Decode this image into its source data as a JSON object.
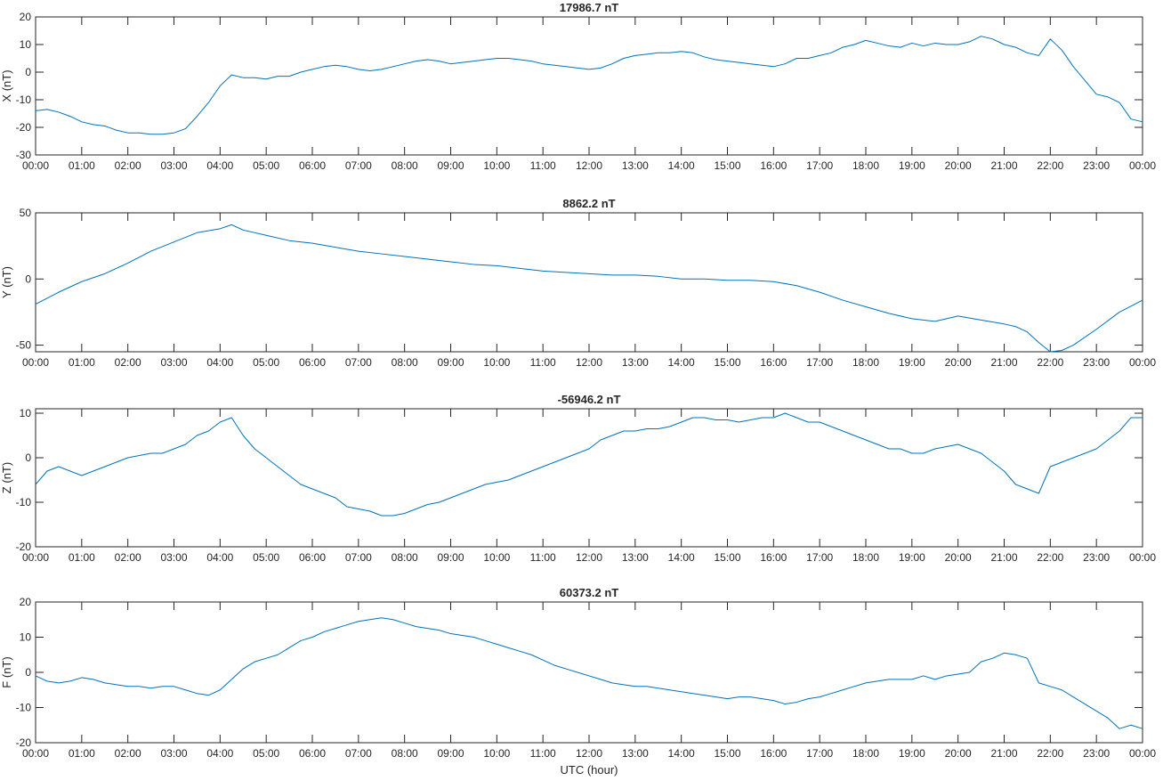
{
  "chart_data": [
    {
      "type": "line",
      "title": "17986.7 nT",
      "ylabel": "X (nT)",
      "xlabel": "",
      "xlim": [
        0,
        24
      ],
      "ylim": [
        -30,
        20
      ],
      "yticks": [
        -30,
        -20,
        -10,
        0,
        10,
        20
      ],
      "xtick_labels": [
        "00:00",
        "01:00",
        "02:00",
        "03:00",
        "04:00",
        "05:00",
        "06:00",
        "07:00",
        "08:00",
        "09:00",
        "10:00",
        "11:00",
        "12:00",
        "13:00",
        "14:00",
        "15:00",
        "16:00",
        "17:00",
        "18:00",
        "19:00",
        "20:00",
        "21:00",
        "22:00",
        "23:00",
        "00:00"
      ],
      "grid": false,
      "color": "#0072BD",
      "x": [
        0,
        0.25,
        0.5,
        0.75,
        1,
        1.25,
        1.5,
        1.75,
        2,
        2.25,
        2.5,
        2.75,
        3,
        3.25,
        3.5,
        3.75,
        4,
        4.25,
        4.5,
        4.75,
        5,
        5.25,
        5.5,
        5.75,
        6,
        6.25,
        6.5,
        6.75,
        7,
        7.25,
        7.5,
        7.75,
        8,
        8.25,
        8.5,
        8.75,
        9,
        9.25,
        9.5,
        9.75,
        10,
        10.25,
        10.5,
        10.75,
        11,
        11.25,
        11.5,
        11.75,
        12,
        12.25,
        12.5,
        12.75,
        13,
        13.25,
        13.5,
        13.75,
        14,
        14.25,
        14.5,
        14.75,
        15,
        15.25,
        15.5,
        15.75,
        16,
        16.25,
        16.5,
        16.75,
        17,
        17.25,
        17.5,
        17.75,
        18,
        18.25,
        18.5,
        18.75,
        19,
        19.25,
        19.5,
        19.75,
        20,
        20.25,
        20.5,
        20.75,
        21,
        21.25,
        21.5,
        21.75,
        22,
        22.25,
        22.5,
        22.75,
        23,
        23.25,
        23.5,
        23.75,
        24
      ],
      "y": [
        -14,
        -13.5,
        -14.5,
        -16,
        -18,
        -19,
        -19.5,
        -21,
        -22,
        -22,
        -22.5,
        -22.5,
        -22,
        -20.5,
        -16,
        -11,
        -5,
        -1,
        -2,
        -2,
        -2.5,
        -1.5,
        -1.5,
        0,
        1,
        2,
        2.5,
        2,
        1,
        0.5,
        1,
        2,
        3,
        4,
        4.5,
        4,
        3,
        3.5,
        4,
        4.5,
        5,
        5,
        4.5,
        4,
        3,
        2.5,
        2,
        1.5,
        1,
        1.5,
        3,
        5,
        6,
        6.5,
        7,
        7,
        7.5,
        7,
        5.5,
        4.5,
        4,
        3.5,
        3,
        2.5,
        2,
        3,
        5,
        5,
        6,
        7,
        9,
        10,
        11.5,
        10.5,
        9.5,
        9,
        10.5,
        9.5,
        10.5,
        10,
        10,
        11,
        13,
        12,
        10,
        9,
        7,
        6,
        12,
        8,
        2,
        -3,
        -8,
        -9,
        -11,
        -17,
        -18
      ]
    },
    {
      "type": "line",
      "title": "8862.2 nT",
      "ylabel": "Y (nT)",
      "xlabel": "",
      "xlim": [
        0,
        24
      ],
      "ylim": [
        -55,
        50
      ],
      "yticks": [
        -50,
        0,
        50
      ],
      "xtick_labels": [
        "00:00",
        "01:00",
        "02:00",
        "03:00",
        "04:00",
        "05:00",
        "06:00",
        "07:00",
        "08:00",
        "09:00",
        "10:00",
        "11:00",
        "12:00",
        "13:00",
        "14:00",
        "15:00",
        "16:00",
        "17:00",
        "18:00",
        "19:00",
        "20:00",
        "21:00",
        "22:00",
        "23:00",
        "00:00"
      ],
      "grid": false,
      "color": "#0072BD",
      "x": [
        0,
        0.5,
        1,
        1.5,
        2,
        2.5,
        3,
        3.5,
        4,
        4.25,
        4.5,
        5,
        5.5,
        6,
        6.5,
        7,
        7.5,
        8,
        8.5,
        9,
        9.5,
        10,
        10.5,
        11,
        11.5,
        12,
        12.5,
        13,
        13.5,
        14,
        14.5,
        15,
        15.5,
        16,
        16.5,
        17,
        17.5,
        18,
        18.5,
        19,
        19.5,
        20,
        20.5,
        21,
        21.25,
        21.5,
        21.75,
        22,
        22.25,
        22.5,
        23,
        23.5,
        24
      ],
      "y": [
        -19,
        -10,
        -2,
        4,
        12,
        21,
        28,
        35,
        38,
        41,
        37,
        33,
        29,
        27,
        24,
        21,
        19,
        17,
        15,
        13,
        11,
        10,
        8,
        6,
        5,
        4,
        3,
        3,
        2,
        0,
        0,
        -1,
        -1,
        -2,
        -5,
        -10,
        -16,
        -21,
        -26,
        -30,
        -32,
        -28,
        -31,
        -34,
        -36,
        -40,
        -48,
        -55,
        -54,
        -50,
        -38,
        -25,
        -16
      ]
    },
    {
      "type": "line",
      "title": "-56946.2 nT",
      "ylabel": "Z (nT)",
      "xlabel": "",
      "xlim": [
        0,
        24
      ],
      "ylim": [
        -20,
        11
      ],
      "yticks": [
        -20,
        -10,
        0,
        10
      ],
      "xtick_labels": [
        "00:00",
        "01:00",
        "02:00",
        "03:00",
        "04:00",
        "05:00",
        "06:00",
        "07:00",
        "08:00",
        "09:00",
        "10:00",
        "11:00",
        "12:00",
        "13:00",
        "14:00",
        "15:00",
        "16:00",
        "17:00",
        "18:00",
        "19:00",
        "20:00",
        "21:00",
        "22:00",
        "23:00",
        "00:00"
      ],
      "grid": false,
      "color": "#0072BD",
      "x": [
        0,
        0.25,
        0.5,
        0.75,
        1,
        1.25,
        1.5,
        1.75,
        2,
        2.25,
        2.5,
        2.75,
        3,
        3.25,
        3.5,
        3.75,
        4,
        4.25,
        4.5,
        4.75,
        5,
        5.25,
        5.5,
        5.75,
        6,
        6.25,
        6.5,
        6.75,
        7,
        7.25,
        7.5,
        7.75,
        8,
        8.25,
        8.5,
        8.75,
        9,
        9.25,
        9.5,
        9.75,
        10,
        10.25,
        10.5,
        10.75,
        11,
        11.25,
        11.5,
        11.75,
        12,
        12.25,
        12.5,
        12.75,
        13,
        13.25,
        13.5,
        13.75,
        14,
        14.25,
        14.5,
        14.75,
        15,
        15.25,
        15.5,
        15.75,
        16,
        16.25,
        16.5,
        16.75,
        17,
        17.25,
        17.5,
        17.75,
        18,
        18.25,
        18.5,
        18.75,
        19,
        19.25,
        19.5,
        19.75,
        20,
        20.25,
        20.5,
        20.75,
        21,
        21.25,
        21.5,
        21.75,
        22,
        22.25,
        22.5,
        22.75,
        23,
        23.25,
        23.5,
        23.75,
        24
      ],
      "y": [
        -6,
        -3,
        -2,
        -3,
        -4,
        -3,
        -2,
        -1,
        0,
        0.5,
        1,
        1,
        2,
        3,
        5,
        6,
        8,
        9,
        5,
        2,
        0,
        -2,
        -4,
        -6,
        -7,
        -8,
        -9,
        -11,
        -11.5,
        -12,
        -13,
        -13,
        -12.5,
        -11.5,
        -10.5,
        -10,
        -9,
        -8,
        -7,
        -6,
        -5.5,
        -5,
        -4,
        -3,
        -2,
        -1,
        0,
        1,
        2,
        4,
        5,
        6,
        6,
        6.5,
        6.5,
        7,
        8,
        9,
        9,
        8.5,
        8.5,
        8,
        8.5,
        9,
        9,
        10,
        9,
        8,
        8,
        7,
        6,
        5,
        4,
        3,
        2,
        2,
        1,
        1,
        2,
        2.5,
        3,
        2,
        1,
        -1,
        -3,
        -6,
        -7,
        -8,
        -2,
        -1,
        0,
        1,
        2,
        4,
        6,
        9,
        9
      ]
    },
    {
      "type": "line",
      "title": "60373.2 nT",
      "ylabel": "F (nT)",
      "xlabel": "UTC (hour)",
      "xlim": [
        0,
        24
      ],
      "ylim": [
        -20,
        20
      ],
      "yticks": [
        -20,
        -10,
        0,
        10,
        20
      ],
      "xtick_labels": [
        "00:00",
        "01:00",
        "02:00",
        "03:00",
        "04:00",
        "05:00",
        "06:00",
        "07:00",
        "08:00",
        "09:00",
        "10:00",
        "11:00",
        "12:00",
        "13:00",
        "14:00",
        "15:00",
        "16:00",
        "17:00",
        "18:00",
        "19:00",
        "20:00",
        "21:00",
        "22:00",
        "23:00",
        "00:00"
      ],
      "grid": false,
      "color": "#0072BD",
      "x": [
        0,
        0.25,
        0.5,
        0.75,
        1,
        1.25,
        1.5,
        1.75,
        2,
        2.25,
        2.5,
        2.75,
        3,
        3.25,
        3.5,
        3.75,
        4,
        4.25,
        4.5,
        4.75,
        5,
        5.25,
        5.5,
        5.75,
        6,
        6.25,
        6.5,
        6.75,
        7,
        7.25,
        7.5,
        7.75,
        8,
        8.25,
        8.5,
        8.75,
        9,
        9.25,
        9.5,
        9.75,
        10,
        10.25,
        10.5,
        10.75,
        11,
        11.25,
        11.5,
        11.75,
        12,
        12.25,
        12.5,
        12.75,
        13,
        13.25,
        13.5,
        13.75,
        14,
        14.25,
        14.5,
        14.75,
        15,
        15.25,
        15.5,
        15.75,
        16,
        16.25,
        16.5,
        16.75,
        17,
        17.25,
        17.5,
        17.75,
        18,
        18.25,
        18.5,
        18.75,
        19,
        19.25,
        19.5,
        19.75,
        20,
        20.25,
        20.5,
        20.75,
        21,
        21.25,
        21.5,
        21.75,
        22,
        22.25,
        22.5,
        22.75,
        23,
        23.25,
        23.5,
        23.75,
        24
      ],
      "y": [
        -1,
        -2.5,
        -3,
        -2.5,
        -1.5,
        -2,
        -3,
        -3.5,
        -4,
        -4,
        -4.5,
        -4,
        -4,
        -5,
        -6,
        -6.5,
        -5,
        -2,
        1,
        3,
        4,
        5,
        7,
        9,
        10,
        11.5,
        12.5,
        13.5,
        14.5,
        15,
        15.5,
        15,
        14,
        13,
        12.5,
        12,
        11,
        10.5,
        10,
        9,
        8,
        7,
        6,
        5,
        3.5,
        2,
        1,
        0,
        -1,
        -2,
        -3,
        -3.5,
        -4,
        -4,
        -4.5,
        -5,
        -5.5,
        -6,
        -6.5,
        -7,
        -7.5,
        -7,
        -7,
        -7.5,
        -8,
        -9,
        -8.5,
        -7.5,
        -7,
        -6,
        -5,
        -4,
        -3,
        -2.5,
        -2,
        -2,
        -2,
        -1,
        -2,
        -1,
        -0.5,
        0,
        3,
        4,
        5.5,
        5,
        4,
        -3,
        -4,
        -5,
        -7,
        -9,
        -11,
        -13,
        -16,
        -15,
        -16
      ]
    }
  ]
}
